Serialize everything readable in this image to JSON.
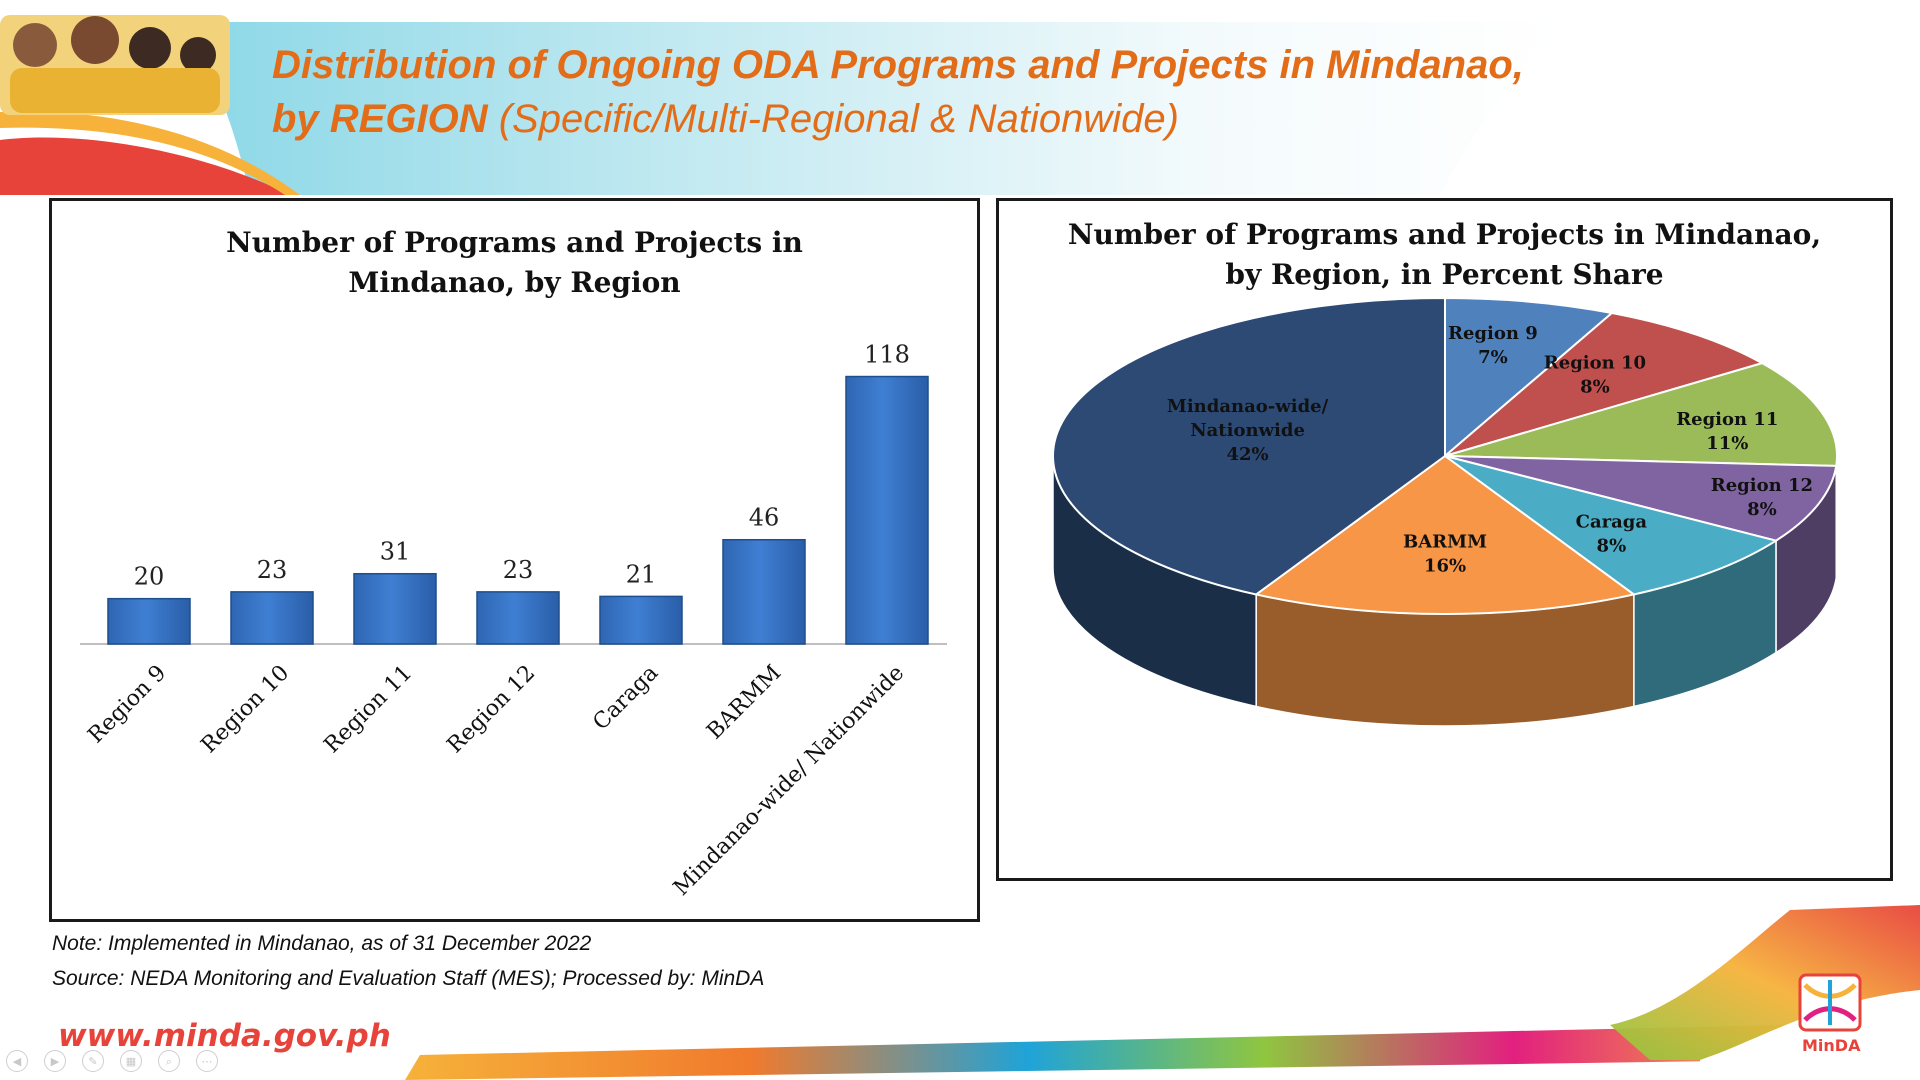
{
  "slide": {
    "title_main": "Distribution of Ongoing ODA Programs and Projects in Mindanao,",
    "title_line2_bold": "by REGION",
    "title_line2_rest": " (Specific/Multi-Regional & Nationwide)",
    "note": "Note: Implemented in Mindanao, as of 31 December 2022",
    "source": "Source: NEDA Monitoring and Evaluation Staff (MES);  Processed by: MinDA",
    "website": "www.minda.gov.ph",
    "logo_label": "MinDA"
  },
  "colors": {
    "title": "#E26C17",
    "bar": "#3F7FD3",
    "accent_red": "#E8433A"
  },
  "chart_data": [
    {
      "type": "bar",
      "title": "Number of Programs and Projects in Mindanao, by Region",
      "title_lines": [
        "Number of Programs and Projects in",
        "Mindanao, by Region"
      ],
      "categories": [
        "Region 9",
        "Region 10",
        "Region 11",
        "Region 12",
        "Caraga",
        "BARMM",
        "Mindanao-wide/ Nationwide"
      ],
      "values": [
        20,
        23,
        31,
        23,
        21,
        46,
        118
      ],
      "ylim": [
        0,
        120
      ],
      "grid": false,
      "data_labels": true
    },
    {
      "type": "pie",
      "title": "Number of Programs and Projects in Mindanao, by Region, in Percent Share",
      "title_lines": [
        "Number of Programs and Projects in Mindanao,",
        "by Region, in Percent Share"
      ],
      "slices": [
        {
          "label": "Region 9",
          "value": 7,
          "display": "7%",
          "color": "#4F81BD"
        },
        {
          "label": "Region 10",
          "value": 8,
          "display": "8%",
          "color": "#C0504D"
        },
        {
          "label": "Region 11",
          "value": 11,
          "display": "11%",
          "color": "#9BBB59"
        },
        {
          "label": "Region 12",
          "value": 8,
          "display": "8%",
          "color": "#8064A2"
        },
        {
          "label": "Caraga",
          "value": 8,
          "display": "8%",
          "color": "#4BACC6"
        },
        {
          "label": "BARMM",
          "value": 16,
          "display": "16%",
          "color": "#F79646"
        },
        {
          "label": "Mindanao-wide/ Nationwide",
          "label_lines": [
            "Mindanao-wide/",
            "Nationwide"
          ],
          "value": 42,
          "display": "42%",
          "color": "#2C4A74"
        }
      ]
    }
  ]
}
